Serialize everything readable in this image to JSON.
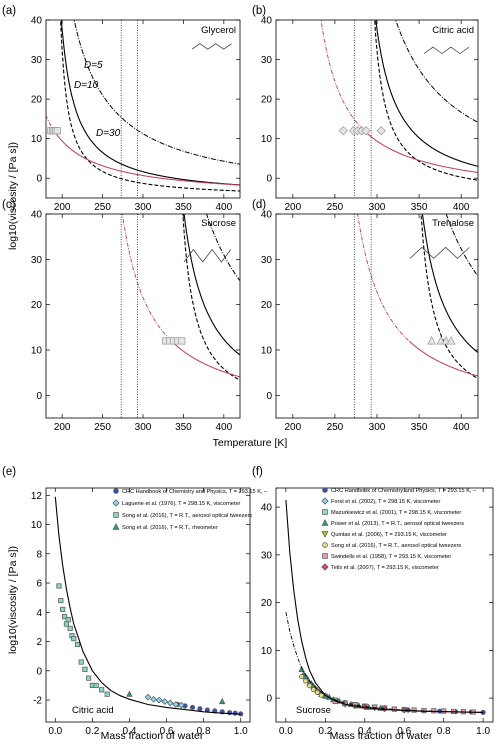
{
  "figure": {
    "colors": {
      "red": "#c23a54",
      "black": "#000000",
      "marker_edge": "#999999"
    },
    "y_label_top": "log10(viscosity / [Pa s])",
    "y_label_bottom": "log10(viscosity / [Pa s])",
    "x_label_top": "Temperature [K]",
    "x_label_bottom_left": "Mass fraction of water",
    "x_label_bottom_right": "Mass fraction of water"
  },
  "chart_data": [
    {
      "panel": "(a)",
      "compound": "Glycerol",
      "type": "line",
      "xlim": [
        180,
        420
      ],
      "ylim": [
        -5,
        40
      ],
      "xticks": [
        "200",
        "250",
        "300",
        "350",
        "400"
      ],
      "yticks": [
        "0",
        "10",
        "20",
        "30",
        "40"
      ],
      "vlines": [
        273,
        293
      ],
      "annotations": [
        "D=5",
        "D=10",
        "D=30"
      ],
      "curve_params": {
        "Tg": 190,
        "T0_5": 189,
        "T0_10": 181.5,
        "T0_30": 166.6
      },
      "measurements": {
        "marker": "square",
        "x": [
          186,
          188,
          190,
          192,
          194
        ],
        "y": [
          12,
          12,
          12,
          12,
          12
        ]
      }
    },
    {
      "panel": "(b)",
      "compound": "Citric acid",
      "type": "line",
      "xlim": [
        180,
        420
      ],
      "ylim": [
        -5,
        40
      ],
      "xticks": [
        "200",
        "250",
        "300",
        "350",
        "400"
      ],
      "yticks": [
        "0",
        "10",
        "20",
        "30",
        "40"
      ],
      "vlines": [
        273,
        293
      ],
      "curve_params": {
        "Tg": 285,
        "T0_5": 283.5,
        "T0_10": 272.3,
        "T0_30": 249.9
      },
      "measurements": {
        "marker": "diamond",
        "x": [
          260,
          272,
          277,
          282,
          287,
          305
        ],
        "y": [
          12,
          12,
          12,
          12,
          12,
          12
        ]
      }
    },
    {
      "panel": "(c)",
      "compound": "Sucrose",
      "type": "line",
      "xlim": [
        180,
        420
      ],
      "ylim": [
        -5,
        40
      ],
      "xticks": [
        "200",
        "250",
        "300",
        "350",
        "400"
      ],
      "yticks": [
        "0",
        "10",
        "20",
        "30",
        "40"
      ],
      "vlines": [
        273,
        293
      ],
      "curve_params": {
        "Tg": 335,
        "T0_5": 333.2,
        "T0_10": 320,
        "T0_30": 293.7
      },
      "measurements": {
        "marker": "square",
        "x": [
          328,
          333,
          338,
          343,
          348
        ],
        "y": [
          12,
          12,
          12,
          12,
          12
        ]
      }
    },
    {
      "panel": "(d)",
      "compound": "Trehalose",
      "type": "line",
      "xlim": [
        180,
        420
      ],
      "ylim": [
        -5,
        40
      ],
      "xticks": [
        "200",
        "250",
        "300",
        "350",
        "400"
      ],
      "yticks": [
        "0",
        "10",
        "20",
        "30",
        "40"
      ],
      "vlines": [
        273,
        293
      ],
      "curve_params": {
        "Tg": 338,
        "T0_5": 336.2,
        "T0_10": 322.9,
        "T0_30": 296.5
      },
      "measurements": {
        "marker": "triangle",
        "x": [
          365,
          376,
          382,
          388
        ],
        "y": [
          12,
          12,
          12,
          12
        ]
      }
    },
    {
      "panel": "(e)",
      "compound": "Citric acid",
      "type": "scatter",
      "xlim": [
        -0.05,
        1.05
      ],
      "ylim": [
        -3.5,
        12.5
      ],
      "xticks": [
        "0.0",
        "0.2",
        "0.4",
        "0.6",
        "0.8",
        "1.0"
      ],
      "yticks": [
        "-2",
        "0",
        "2",
        "4",
        "6",
        "8",
        "10",
        "12"
      ],
      "model_curve": {
        "x": [
          0,
          0.02,
          0.04,
          0.06,
          0.08,
          0.1,
          0.15,
          0.2,
          0.25,
          0.3,
          0.35,
          0.4,
          0.5,
          0.6,
          0.7,
          0.8,
          0.9,
          1.0
        ],
        "y": [
          11.9,
          9.2,
          7.2,
          5.6,
          4.3,
          3.2,
          1.3,
          0.0,
          -0.8,
          -1.35,
          -1.7,
          -1.95,
          -2.3,
          -2.5,
          -2.65,
          -2.8,
          -2.9,
          -2.97
        ]
      },
      "legend": [
        "CRC Handbook of Chemistry and Physics, T = 293.15 K, –",
        "Laguerie et al. (1976), T = 298.15 K, viscometer",
        "Song et al. (2016), T = R.T., aerosol optical tweezers",
        "Song et al. (2016), T = R.T., rheometer"
      ],
      "series": [
        {
          "name": "CRC Handbook of Chemistry and Physics, T = 293.15 K, –",
          "marker": "circle",
          "color": "#3d4fb0",
          "x": [
            0.66,
            0.7,
            0.74,
            0.78,
            0.82,
            0.86,
            0.9,
            0.94,
            0.97,
            1.0
          ],
          "y": [
            -2.3,
            -2.4,
            -2.5,
            -2.6,
            -2.68,
            -2.74,
            -2.8,
            -2.86,
            -2.9,
            -2.95
          ]
        },
        {
          "name": "Laguerie et al. (1976), T = 298.15 K, viscometer",
          "marker": "diamond",
          "color": "#8fd3ea",
          "x": [
            0.5,
            0.53,
            0.56,
            0.59,
            0.62,
            0.65,
            0.68
          ],
          "y": [
            -1.8,
            -1.95,
            -2.0,
            -2.1,
            -2.2,
            -2.3,
            -2.35
          ]
        },
        {
          "name": "Song et al. (2016), T = R.T., aerosol optical tweezers",
          "marker": "square",
          "color": "#8fd3c8",
          "x": [
            0.02,
            0.03,
            0.04,
            0.05,
            0.06,
            0.07,
            0.08,
            0.09,
            0.1,
            0.12,
            0.14,
            0.16,
            0.18,
            0.2,
            0.22,
            0.25,
            0.28
          ],
          "y": [
            5.8,
            4.8,
            4.2,
            3.7,
            3.2,
            3.5,
            2.9,
            2.4,
            2.2,
            1.8,
            0.6,
            0.1,
            -0.5,
            -1.0,
            -1.0,
            -1.3,
            -1.6
          ]
        },
        {
          "name": "Song et al. (2016), T = R.T., rheometer",
          "marker": "triangle",
          "color": "#2f9e77",
          "x": [
            0.4,
            0.9
          ],
          "y": [
            -1.6,
            -2.1
          ]
        }
      ]
    },
    {
      "panel": "(f)",
      "compound": "Sucrose",
      "type": "scatter",
      "xlim": [
        -0.05,
        1.05
      ],
      "ylim": [
        -5,
        44
      ],
      "xticks": [
        "0.0",
        "0.2",
        "0.4",
        "0.6",
        "0.8",
        "1.0"
      ],
      "yticks": [
        "0",
        "10",
        "20",
        "30",
        "40"
      ],
      "model_curve": {
        "x": [
          0,
          0.02,
          0.04,
          0.06,
          0.08,
          0.1,
          0.12,
          0.15,
          0.2,
          0.25,
          0.3,
          0.4,
          0.5,
          0.6,
          0.7,
          0.8,
          0.9,
          1.0
        ],
        "y": [
          41.5,
          30.5,
          22.5,
          16.5,
          12,
          8.5,
          5.8,
          3.2,
          0.6,
          -0.6,
          -1.3,
          -2.0,
          -2.4,
          -2.6,
          -2.75,
          -2.85,
          -2.93,
          -3.0
        ]
      },
      "model_curve_dashdot": {
        "x": [
          0,
          0.02,
          0.04,
          0.06,
          0.08,
          0.1,
          0.12,
          0.15,
          0.2,
          0.25,
          0.3,
          0.4,
          0.5,
          0.6,
          0.8,
          1.0
        ],
        "y": [
          18,
          14,
          11,
          8.4,
          6.4,
          4.8,
          3.6,
          2.2,
          0.6,
          -0.4,
          -1.0,
          -1.8,
          -2.2,
          -2.5,
          -2.8,
          -3.0
        ]
      },
      "legend": [
        "CRC Handbook of Chemistry and Physics, T = 293.15 K, –",
        "Forst et al. (2002), T = 298.15 K, viscometer",
        "Mazurkiewicz et al. (2001), T = 298.15 K, viscometer",
        "Power et al. (2013), T = R.T., aerosol optical tweezers",
        "Quintas et al. (2006), T = 293.15 K, viscometer",
        "Song et al. (2016), T = R.T., aerosol optical tweezers",
        "Swindells et al. (1958), T = 293.15 K, viscometer",
        "Telis et al. (2007), T = 293.15 K, viscometer"
      ],
      "series": [
        {
          "name": "CRC Handbook of Chemistry and Physics, T = 293.15 K, –",
          "marker": "circle",
          "color": "#3d4fb0",
          "x": [
            0.55,
            0.62,
            0.7,
            0.78,
            0.86,
            0.94,
            1.0
          ],
          "y": [
            -2.3,
            -2.5,
            -2.65,
            -2.75,
            -2.85,
            -2.92,
            -3.0
          ]
        },
        {
          "name": "Forst et al. (2002), T = 298.15 K, viscometer",
          "marker": "diamond",
          "color": "#8fd3ea",
          "x": [
            0.3,
            0.35,
            0.4,
            0.45,
            0.5
          ],
          "y": [
            -1.3,
            -1.6,
            -1.8,
            -2.0,
            -2.2
          ]
        },
        {
          "name": "Mazurkiewicz et al. (2001), T = 298.15 K, viscometer",
          "marker": "square",
          "color": "#8fd3c8",
          "x": [
            0.2,
            0.25,
            0.3,
            0.35
          ],
          "y": [
            0.4,
            -0.4,
            -1.0,
            -1.4
          ]
        },
        {
          "name": "Power et al. (2013), T = R.T., aerosol optical tweezers",
          "marker": "triangle",
          "color": "#2f9e77",
          "x": [
            0.08,
            0.09,
            0.1,
            0.11,
            0.12,
            0.13,
            0.14,
            0.15,
            0.16,
            0.17,
            0.18,
            0.2,
            0.22,
            0.24,
            0.27,
            0.3,
            0.33,
            0.37,
            0.42,
            0.48
          ],
          "y": [
            6,
            5,
            4.5,
            4,
            3.2,
            3,
            2.5,
            2,
            1.6,
            1.2,
            0.8,
            0.5,
            0.2,
            -0.3,
            -0.6,
            -1.0,
            -1.3,
            -1.6,
            -1.9,
            -2.1
          ]
        },
        {
          "name": "Quintas et al. (2006), T = 293.15 K, viscometer",
          "marker": "triangle-down",
          "color": "#b7b53a",
          "x": [
            0.35,
            0.4,
            0.45,
            0.5
          ],
          "y": [
            -1.4,
            -1.7,
            -1.9,
            -2.1
          ]
        },
        {
          "name": "Song et al. (2016), T = R.T., aerosol optical tweezers",
          "marker": "circle",
          "color": "#e6d98a",
          "x": [
            0.08,
            0.1,
            0.12,
            0.14,
            0.16,
            0.18
          ],
          "y": [
            4.5,
            3.6,
            2.6,
            1.8,
            1.2,
            0.6
          ]
        },
        {
          "name": "Swindells et al. (1958), T = 293.15 K, viscometer",
          "marker": "square",
          "color": "#e99aa7",
          "x": [
            0.25,
            0.3,
            0.35,
            0.4,
            0.45,
            0.5,
            0.55,
            0.6,
            0.65,
            0.7,
            0.75,
            0.8,
            0.85,
            0.9,
            0.95
          ],
          "y": [
            -0.7,
            -1.1,
            -1.4,
            -1.7,
            -1.9,
            -2.1,
            -2.3,
            -2.4,
            -2.5,
            -2.6,
            -2.65,
            -2.7,
            -2.8,
            -2.85,
            -2.9
          ]
        },
        {
          "name": "Telis et al. (2007), T = 293.15 K, viscometer",
          "marker": "diamond",
          "color": "#d94c63",
          "x": [
            0.4,
            0.5,
            0.6
          ],
          "y": [
            -1.8,
            -2.2,
            -2.5
          ]
        }
      ]
    }
  ]
}
